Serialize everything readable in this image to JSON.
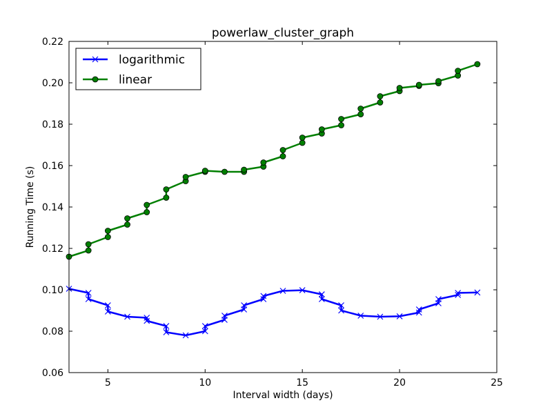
{
  "chart_data": {
    "type": "line",
    "title": "powerlaw_cluster_graph",
    "xlabel": "Interval width (days)",
    "ylabel": "Running Time (s)",
    "xlim": [
      3,
      25
    ],
    "ylim": [
      0.06,
      0.22
    ],
    "x_ticks": [
      "5",
      "10",
      "15",
      "20",
      "25"
    ],
    "y_ticks": [
      "0.06",
      "0.08",
      "0.10",
      "0.12",
      "0.14",
      "0.16",
      "0.18",
      "0.20",
      "0.22"
    ],
    "grid": false,
    "legend": "upper-left",
    "series": [
      {
        "name": "logarithmic",
        "color": "#0000ff",
        "marker": "x",
        "points": [
          [
            3,
            0.1005
          ],
          [
            4,
            0.0985
          ],
          [
            4,
            0.0955
          ],
          [
            5,
            0.0925
          ],
          [
            5,
            0.0895
          ],
          [
            6,
            0.087
          ],
          [
            7,
            0.0865
          ],
          [
            7,
            0.085
          ],
          [
            8,
            0.0825
          ],
          [
            8,
            0.0795
          ],
          [
            9,
            0.078
          ],
          [
            10,
            0.08
          ],
          [
            10,
            0.0825
          ],
          [
            11,
            0.0855
          ],
          [
            11,
            0.0875
          ],
          [
            12,
            0.0905
          ],
          [
            12,
            0.0925
          ],
          [
            13,
            0.0955
          ],
          [
            13,
            0.097
          ],
          [
            14,
            0.0995
          ],
          [
            15,
            0.0998
          ],
          [
            16,
            0.0978
          ],
          [
            16,
            0.0955
          ],
          [
            17,
            0.0925
          ],
          [
            17,
            0.09
          ],
          [
            18,
            0.0875
          ],
          [
            19,
            0.087
          ],
          [
            20,
            0.0872
          ],
          [
            21,
            0.089
          ],
          [
            21,
            0.0905
          ],
          [
            22,
            0.0935
          ],
          [
            22,
            0.0955
          ],
          [
            23,
            0.0975
          ],
          [
            23,
            0.0985
          ],
          [
            24,
            0.0987
          ]
        ]
      },
      {
        "name": "linear",
        "color": "#007f00",
        "marker": "o",
        "points": [
          [
            3,
            0.116
          ],
          [
            4,
            0.119
          ],
          [
            4,
            0.122
          ],
          [
            5,
            0.1255
          ],
          [
            5,
            0.1285
          ],
          [
            6,
            0.1315
          ],
          [
            6,
            0.1345
          ],
          [
            7,
            0.1375
          ],
          [
            7,
            0.141
          ],
          [
            8,
            0.1445
          ],
          [
            8,
            0.1485
          ],
          [
            9,
            0.1525
          ],
          [
            9,
            0.1545
          ],
          [
            10,
            0.157
          ],
          [
            10,
            0.1575
          ],
          [
            11,
            0.157
          ],
          [
            12,
            0.157
          ],
          [
            12,
            0.158
          ],
          [
            13,
            0.1595
          ],
          [
            13,
            0.1615
          ],
          [
            14,
            0.1645
          ],
          [
            14,
            0.1675
          ],
          [
            15,
            0.171
          ],
          [
            15,
            0.1735
          ],
          [
            16,
            0.1755
          ],
          [
            16,
            0.1775
          ],
          [
            17,
            0.1795
          ],
          [
            17,
            0.1825
          ],
          [
            18,
            0.1848
          ],
          [
            18,
            0.1875
          ],
          [
            19,
            0.1905
          ],
          [
            19,
            0.1935
          ],
          [
            20,
            0.196
          ],
          [
            20,
            0.1975
          ],
          [
            21,
            0.1985
          ],
          [
            21,
            0.199
          ],
          [
            22,
            0.1998
          ],
          [
            22,
            0.2008
          ],
          [
            23,
            0.2035
          ],
          [
            23,
            0.2058
          ],
          [
            24,
            0.209
          ]
        ]
      }
    ]
  }
}
